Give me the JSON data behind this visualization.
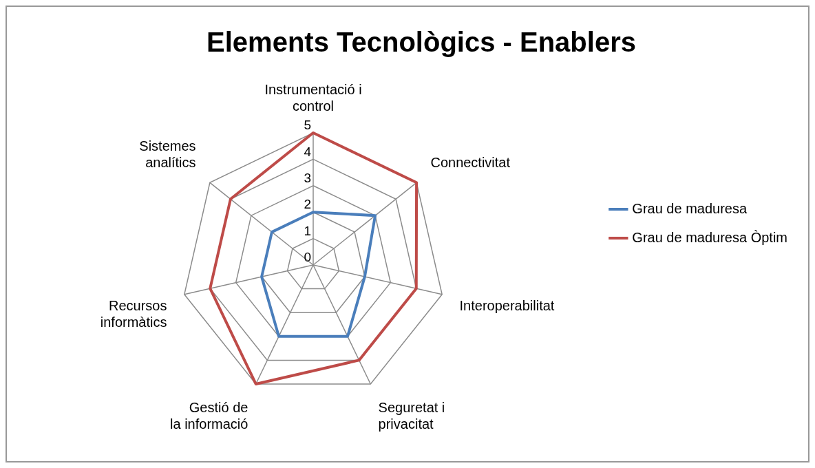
{
  "chart_data": {
    "type": "radar",
    "title": "Elements Tecnològics - Enablers",
    "categories": [
      "Instrumentació i control",
      "Connectivitat",
      "Interoperabilitat",
      "Seguretat i privacitat",
      "Gestió de la informació",
      "Recursos informàtics",
      "Sistemes analítics"
    ],
    "series": [
      {
        "name": "Grau de maduresa",
        "color": "#4a7ebb",
        "values": [
          2,
          3,
          2,
          3,
          3,
          2,
          2
        ]
      },
      {
        "name": "Grau de maduresa Òptim",
        "color": "#be4b48",
        "values": [
          5,
          5,
          4,
          4,
          5,
          4,
          4
        ]
      }
    ],
    "ylim": [
      0,
      5
    ],
    "yticks": [
      0,
      1,
      2,
      3,
      4,
      5
    ],
    "grid": true,
    "legend": "right",
    "marker": "none",
    "line_style": "solid"
  }
}
